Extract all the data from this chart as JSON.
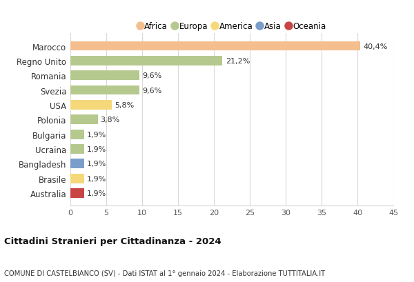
{
  "countries": [
    "Marocco",
    "Regno Unito",
    "Romania",
    "Svezia",
    "USA",
    "Polonia",
    "Bulgaria",
    "Ucraina",
    "Bangladesh",
    "Brasile",
    "Australia"
  ],
  "values": [
    40.4,
    21.2,
    9.6,
    9.6,
    5.8,
    3.8,
    1.9,
    1.9,
    1.9,
    1.9,
    1.9
  ],
  "labels": [
    "40,4%",
    "21,2%",
    "9,6%",
    "9,6%",
    "5,8%",
    "3,8%",
    "1,9%",
    "1,9%",
    "1,9%",
    "1,9%",
    "1,9%"
  ],
  "colors": [
    "#f4be8e",
    "#b5c98e",
    "#b5c98e",
    "#b5c98e",
    "#f5d87a",
    "#b5c98e",
    "#b5c98e",
    "#b5c98e",
    "#7a9ec9",
    "#f5d87a",
    "#c94545"
  ],
  "legend": [
    {
      "label": "Africa",
      "color": "#f4be8e"
    },
    {
      "label": "Europa",
      "color": "#b5c98e"
    },
    {
      "label": "America",
      "color": "#f5d87a"
    },
    {
      "label": "Asia",
      "color": "#7a9ec9"
    },
    {
      "label": "Oceania",
      "color": "#c94545"
    }
  ],
  "xlim": [
    0,
    45
  ],
  "xticks": [
    0,
    5,
    10,
    15,
    20,
    25,
    30,
    35,
    40,
    45
  ],
  "title": "Cittadini Stranieri per Cittadinanza - 2024",
  "subtitle": "COMUNE DI CASTELBIANCO (SV) - Dati ISTAT al 1° gennaio 2024 - Elaborazione TUTTITALIA.IT",
  "background_color": "#ffffff",
  "grid_color": "#d8d8d8",
  "bar_height": 0.65
}
